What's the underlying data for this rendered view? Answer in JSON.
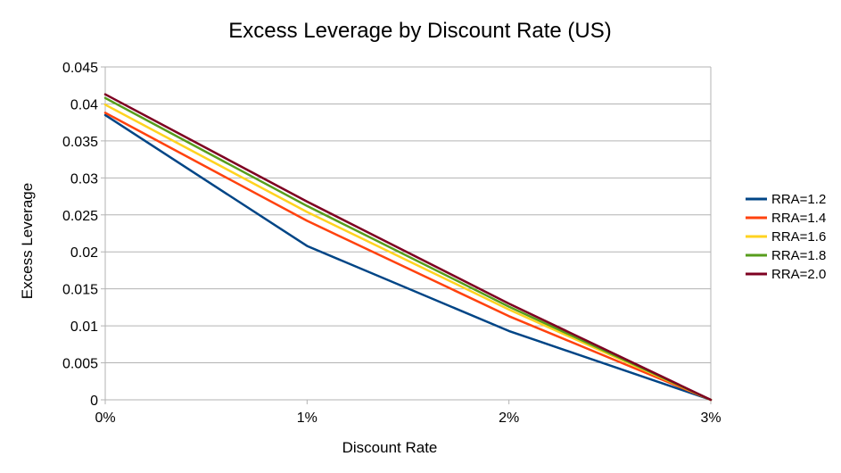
{
  "chart_data": {
    "type": "line",
    "title": "Excess Leverage by Discount Rate (US)",
    "xlabel": "Discount Rate",
    "ylabel": "Excess Leverage",
    "categories": [
      "0%",
      "1%",
      "2%",
      "3%"
    ],
    "x": [
      0,
      1,
      2,
      3
    ],
    "xlim": [
      0,
      3
    ],
    "ylim": [
      0,
      0.045
    ],
    "yticks": [
      0,
      0.005,
      0.01,
      0.015,
      0.02,
      0.025,
      0.03,
      0.035,
      0.04,
      0.045
    ],
    "ytick_labels": [
      "0",
      "0.005",
      "0.01",
      "0.015",
      "0.02",
      "0.025",
      "0.03",
      "0.035",
      "0.04",
      "0.045"
    ],
    "grid": true,
    "legend_position": "right",
    "series": [
      {
        "name": "RRA=1.2",
        "color": "#004586",
        "values": [
          0.0385,
          0.0208,
          0.0093,
          0.0
        ]
      },
      {
        "name": "RRA=1.4",
        "color": "#FF420E",
        "values": [
          0.0388,
          0.0242,
          0.0113,
          0.0
        ]
      },
      {
        "name": "RRA=1.6",
        "color": "#FFD320",
        "values": [
          0.0399,
          0.0254,
          0.0122,
          0.0
        ]
      },
      {
        "name": "RRA=1.8",
        "color": "#579D1C",
        "values": [
          0.0408,
          0.0262,
          0.0126,
          0.0
        ]
      },
      {
        "name": "RRA=2.0",
        "color": "#7E0021",
        "values": [
          0.0413,
          0.0268,
          0.013,
          0.0
        ]
      }
    ]
  }
}
